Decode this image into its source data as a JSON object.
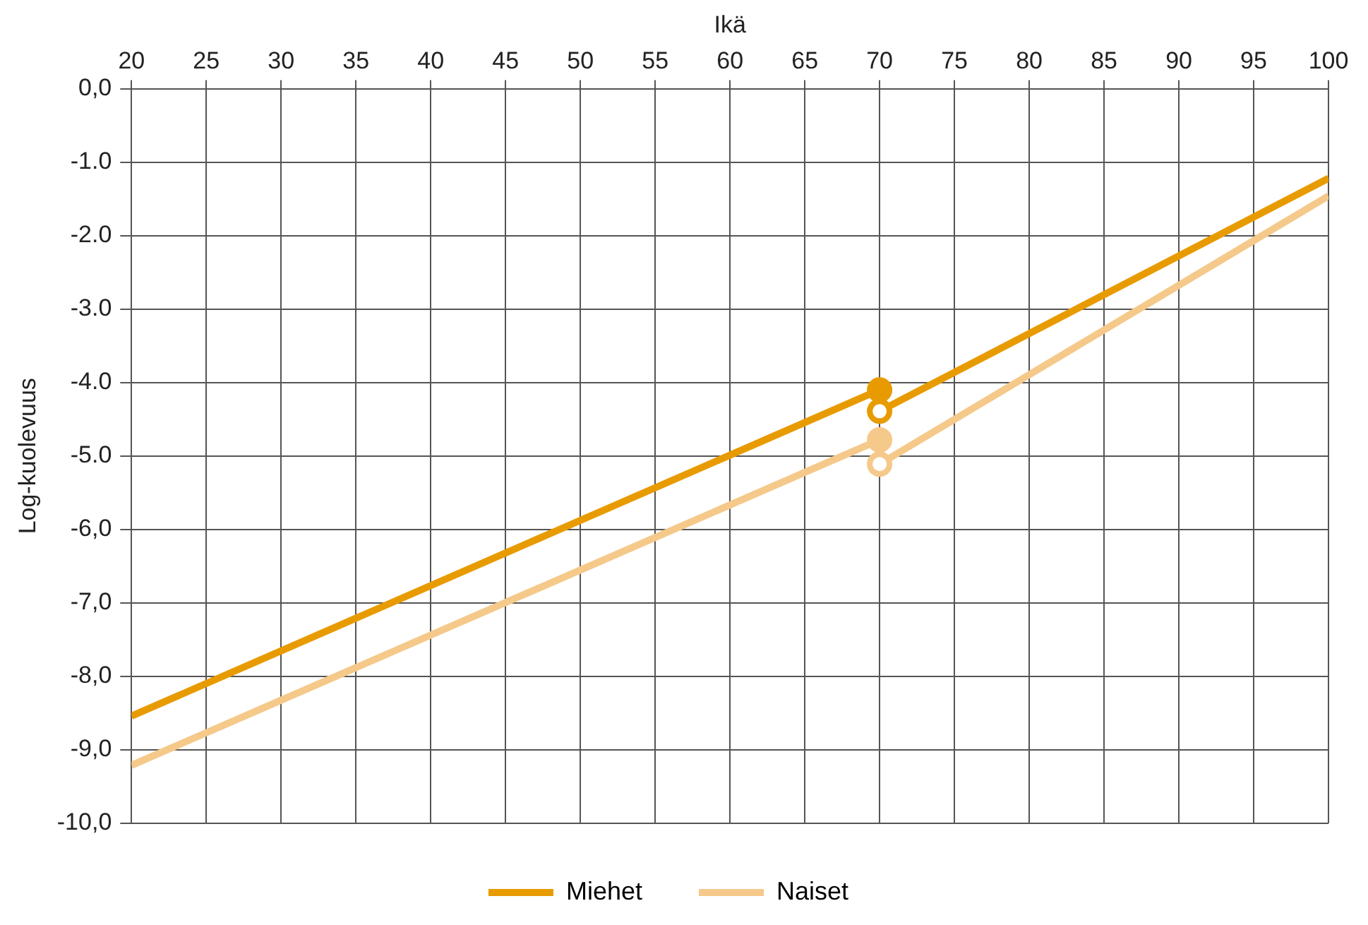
{
  "chart_data": {
    "type": "line",
    "xlabel": "Ikä",
    "ylabel": "Log-kuolevuus",
    "xlim": [
      20,
      100
    ],
    "xticks": [
      20,
      25,
      30,
      35,
      40,
      45,
      50,
      55,
      60,
      65,
      70,
      75,
      80,
      85,
      90,
      95,
      100
    ],
    "ylim": [
      -10,
      0
    ],
    "yticks": [
      {
        "value": 0,
        "label": "0,0"
      },
      {
        "value": -1,
        "label": "-1.0"
      },
      {
        "value": -2,
        "label": "-2.0"
      },
      {
        "value": -3,
        "label": "-3.0"
      },
      {
        "value": -4,
        "label": "-4.0"
      },
      {
        "value": -5,
        "label": "-5.0"
      },
      {
        "value": -6,
        "label": "-6,0"
      },
      {
        "value": -7,
        "label": "-7,0"
      },
      {
        "value": -8,
        "label": "-8,0"
      },
      {
        "value": -9,
        "label": "-9,0"
      },
      {
        "value": -10,
        "label": "-10,0"
      }
    ],
    "grid": true,
    "legend": "bottom",
    "marker": "circle",
    "line_style": "solid",
    "series": [
      {
        "name": "Miehet",
        "color": "#e89b00",
        "x": [
          20,
          70,
          70,
          100
        ],
        "values": [
          -8.54,
          -4.1,
          -4.39,
          -1.22
        ]
      },
      {
        "name": "Naiset",
        "color": "#f5c98a",
        "x": [
          20,
          70,
          70,
          100
        ],
        "values": [
          -9.21,
          -4.78,
          -5.11,
          -1.46
        ]
      }
    ]
  }
}
